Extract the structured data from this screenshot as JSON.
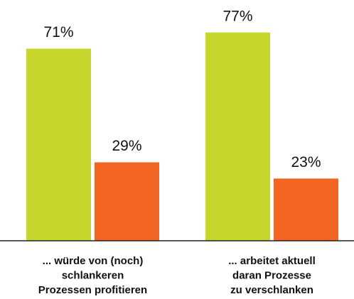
{
  "chart_data": {
    "type": "bar",
    "categories": [
      [
        "... würde von (noch)",
        "schlankeren",
        "Prozessen profitieren"
      ],
      [
        "... arbeitet aktuell",
        "daran Prozesse",
        "zu verschlanken"
      ]
    ],
    "series": [
      {
        "color": "#c6d62d",
        "values": [
          71,
          77
        ],
        "value_labels": [
          "71%",
          "77%"
        ]
      },
      {
        "color": "#f26522",
        "values": [
          29,
          23
        ],
        "value_labels": [
          "29%",
          "23%"
        ]
      }
    ],
    "ylim": [
      0,
      89
    ]
  }
}
